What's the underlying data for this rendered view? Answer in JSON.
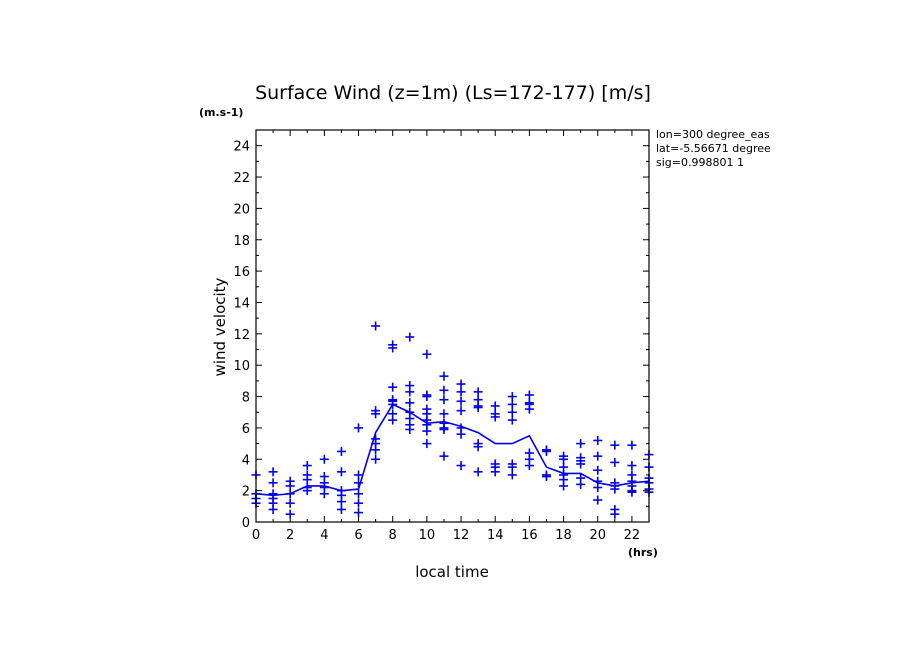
{
  "chart_data": {
    "type": "scatter",
    "title": "Surface Wind (z=1m) (Ls=172-177) [m/s]",
    "y_unit_label": "(m.s-1)",
    "x_unit_label": "(hrs)",
    "xlabel": "local time",
    "ylabel": "wind velocity",
    "xlim": [
      0,
      23
    ],
    "ylim": [
      0,
      25
    ],
    "x_ticks": [
      "0",
      "2",
      "4",
      "6",
      "8",
      "10",
      "12",
      "14",
      "16",
      "18",
      "20",
      "22"
    ],
    "y_ticks": [
      "0",
      "2",
      "4",
      "6",
      "8",
      "10",
      "12",
      "14",
      "16",
      "18",
      "20",
      "22",
      "24"
    ],
    "info_lines": [
      "lon=300 degree_eas",
      "lat=-5.56671 degree",
      "sig=0.998801 1"
    ],
    "color": "#0000ee",
    "series": [
      {
        "kind": "mean_line",
        "x": [
          0,
          1,
          2,
          3,
          4,
          5,
          6,
          7,
          8,
          9,
          10,
          11,
          12,
          13,
          14,
          15,
          16,
          17,
          18,
          19,
          20,
          21,
          22,
          23
        ],
        "y": [
          1.8,
          1.7,
          1.8,
          2.3,
          2.3,
          2.0,
          2.1,
          5.7,
          7.5,
          7.0,
          6.3,
          6.4,
          6.1,
          5.7,
          5.0,
          5.0,
          5.5,
          3.5,
          3.1,
          3.1,
          2.5,
          2.3,
          2.5,
          2.6
        ]
      },
      {
        "kind": "samples",
        "points": [
          [
            0,
            3.0
          ],
          [
            0,
            1.8
          ],
          [
            0,
            1.5
          ],
          [
            0,
            1.2
          ],
          [
            1,
            3.2
          ],
          [
            1,
            2.5
          ],
          [
            1,
            1.8
          ],
          [
            1,
            1.5
          ],
          [
            1,
            1.2
          ],
          [
            1,
            0.8
          ],
          [
            2,
            2.6
          ],
          [
            2,
            2.3
          ],
          [
            2,
            1.8
          ],
          [
            2,
            1.2
          ],
          [
            2,
            0.5
          ],
          [
            3,
            3.6
          ],
          [
            3,
            3.0
          ],
          [
            3,
            2.7
          ],
          [
            3,
            2.2
          ],
          [
            3,
            2.0
          ],
          [
            4,
            4.0
          ],
          [
            4,
            2.9
          ],
          [
            4,
            2.5
          ],
          [
            4,
            2.2
          ],
          [
            4,
            1.8
          ],
          [
            5,
            4.5
          ],
          [
            5,
            3.2
          ],
          [
            5,
            2.0
          ],
          [
            5,
            1.7
          ],
          [
            5,
            1.3
          ],
          [
            5,
            0.8
          ],
          [
            6,
            6.0
          ],
          [
            6,
            3.0
          ],
          [
            6,
            2.5
          ],
          [
            6,
            1.8
          ],
          [
            6,
            1.2
          ],
          [
            6,
            0.6
          ],
          [
            7,
            12.5
          ],
          [
            7,
            7.1
          ],
          [
            7,
            6.9
          ],
          [
            7,
            5.3
          ],
          [
            7,
            5.0
          ],
          [
            7,
            4.6
          ],
          [
            7,
            4.0
          ],
          [
            8,
            11.3
          ],
          [
            8,
            11.1
          ],
          [
            8,
            8.6
          ],
          [
            8,
            7.8
          ],
          [
            8,
            7.7
          ],
          [
            8,
            7.5
          ],
          [
            8,
            6.9
          ],
          [
            8,
            6.5
          ],
          [
            9,
            11.8
          ],
          [
            9,
            8.7
          ],
          [
            9,
            8.3
          ],
          [
            9,
            7.6
          ],
          [
            9,
            7.0
          ],
          [
            9,
            6.6
          ],
          [
            9,
            6.2
          ],
          [
            9,
            5.9
          ],
          [
            10,
            10.7
          ],
          [
            10,
            8.1
          ],
          [
            10,
            8.0
          ],
          [
            10,
            7.2
          ],
          [
            10,
            6.9
          ],
          [
            10,
            6.5
          ],
          [
            10,
            6.2
          ],
          [
            10,
            5.8
          ],
          [
            10,
            5.0
          ],
          [
            11,
            9.3
          ],
          [
            11,
            8.4
          ],
          [
            11,
            7.8
          ],
          [
            11,
            6.9
          ],
          [
            11,
            6.3
          ],
          [
            11,
            6.0
          ],
          [
            11,
            5.9
          ],
          [
            11,
            4.2
          ],
          [
            12,
            8.8
          ],
          [
            12,
            8.3
          ],
          [
            12,
            7.7
          ],
          [
            12,
            7.1
          ],
          [
            12,
            6.0
          ],
          [
            12,
            5.6
          ],
          [
            12,
            3.6
          ],
          [
            13,
            8.3
          ],
          [
            13,
            7.8
          ],
          [
            13,
            7.4
          ],
          [
            13,
            7.3
          ],
          [
            13,
            5.0
          ],
          [
            13,
            4.8
          ],
          [
            13,
            3.2
          ],
          [
            14,
            7.4
          ],
          [
            14,
            6.9
          ],
          [
            14,
            6.7
          ],
          [
            14,
            3.7
          ],
          [
            14,
            3.5
          ],
          [
            14,
            3.2
          ],
          [
            15,
            8.0
          ],
          [
            15,
            7.5
          ],
          [
            15,
            7.0
          ],
          [
            15,
            6.5
          ],
          [
            15,
            3.7
          ],
          [
            15,
            3.5
          ],
          [
            15,
            3.0
          ],
          [
            16,
            8.1
          ],
          [
            16,
            7.6
          ],
          [
            16,
            7.5
          ],
          [
            16,
            7.2
          ],
          [
            16,
            4.4
          ],
          [
            16,
            4.0
          ],
          [
            16,
            3.6
          ],
          [
            17,
            4.6
          ],
          [
            17,
            4.5
          ],
          [
            17,
            3.0
          ],
          [
            17,
            2.9
          ],
          [
            18,
            4.2
          ],
          [
            18,
            4.0
          ],
          [
            18,
            3.5
          ],
          [
            18,
            3.0
          ],
          [
            18,
            2.7
          ],
          [
            18,
            2.3
          ],
          [
            19,
            5.0
          ],
          [
            19,
            4.1
          ],
          [
            19,
            3.9
          ],
          [
            19,
            3.7
          ],
          [
            19,
            2.8
          ],
          [
            19,
            2.4
          ],
          [
            20,
            5.2
          ],
          [
            20,
            4.2
          ],
          [
            20,
            3.3
          ],
          [
            20,
            2.6
          ],
          [
            20,
            2.2
          ],
          [
            20,
            1.4
          ],
          [
            21,
            4.9
          ],
          [
            21,
            3.8
          ],
          [
            21,
            2.5
          ],
          [
            21,
            2.3
          ],
          [
            21,
            2.1
          ],
          [
            21,
            0.8
          ],
          [
            21,
            0.5
          ],
          [
            22,
            4.9
          ],
          [
            22,
            3.6
          ],
          [
            22,
            3.0
          ],
          [
            22,
            2.6
          ],
          [
            22,
            2.3
          ],
          [
            22,
            2.0
          ],
          [
            22,
            1.9
          ],
          [
            23,
            4.3
          ],
          [
            23,
            3.5
          ],
          [
            23,
            2.8
          ],
          [
            23,
            2.5
          ],
          [
            23,
            2.1
          ],
          [
            23,
            1.9
          ]
        ]
      }
    ]
  }
}
